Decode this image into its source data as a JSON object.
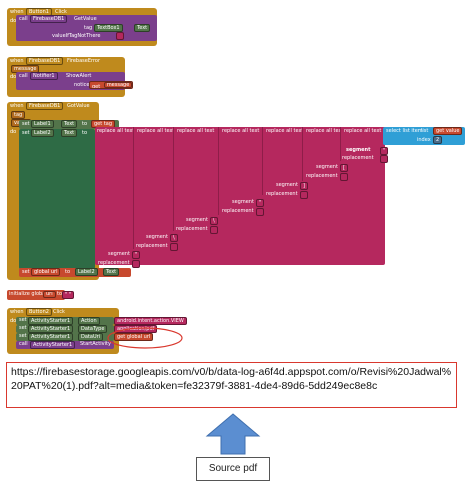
{
  "colors": {
    "event": "#bf8a1d",
    "component_call": "#7b3f8c",
    "component_set": "#53744a",
    "text_block": "#b5285e",
    "variable": "#c7492e",
    "list": "#2f9fd6",
    "highlight": "#d9382e",
    "arrow": "#5b8ed1"
  },
  "block1": {
    "when": "when",
    "component": "Button1",
    "event": "Click",
    "do": "do",
    "call": "call",
    "db": "FirebaseDB1",
    "method": "GetValue",
    "tag": "tag",
    "tag_value_comp": "TextBox1",
    "tag_value_prop": "Text",
    "value_if_tag_not_there": "valueIfTagNotThere"
  },
  "block2": {
    "when": "when",
    "component": "FirebaseDB1",
    "event": "FirebaseError",
    "param": "message",
    "do": "do",
    "call": "call",
    "notifier": "Notifier1",
    "method": "ShowAlert",
    "notice": "notice",
    "get": "get",
    "get_var": "message"
  },
  "block3": {
    "when": "when",
    "component": "FirebaseDB1",
    "event": "GotValue",
    "params": [
      "tag",
      "value"
    ],
    "do": "do",
    "set": "set",
    "label1": "Label1",
    "text_prop": "Text",
    "to": "to",
    "get": "get",
    "get_tag": "tag",
    "label2": "Label2",
    "replace_all_text": "replace all text",
    "select_list_item": "select list item",
    "list": "list",
    "get_value": "value",
    "index": "index",
    "index_value": "2",
    "segment": "segment",
    "replacement": "replacement",
    "quote_chars": [
      "\"",
      "[",
      "]",
      "\"",
      "\\"
    ],
    "set_global": "global url",
    "label2_text": "Label2",
    "text2": "Text"
  },
  "block4": {
    "initialize": "initialize global",
    "var_name": "url",
    "to": "to",
    "value": "\" \""
  },
  "block5": {
    "when": "when",
    "component": "Button2",
    "event": "Click",
    "do": "do",
    "set": "set",
    "activity": "ActivityStarter1",
    "action_prop": "Action",
    "action_value": "android.intent.action.VIEW",
    "datatype_prop": "DataType",
    "datatype_value": "application/pdf",
    "datauri_prop": "DataUri",
    "get": "get",
    "get_var": "global url",
    "call": "call",
    "method": "StartActivity"
  },
  "url_text": "https://firebasestorage.googleapis.com/v0/b/data-log-a6f4d.appspot.com/o/Revisi%20Jadwal%20PAT%20(1).pdf?alt=media&token=fe32379f-3881-4de4-89d6-5dd249ec8e8c",
  "source_label": "Source pdf"
}
